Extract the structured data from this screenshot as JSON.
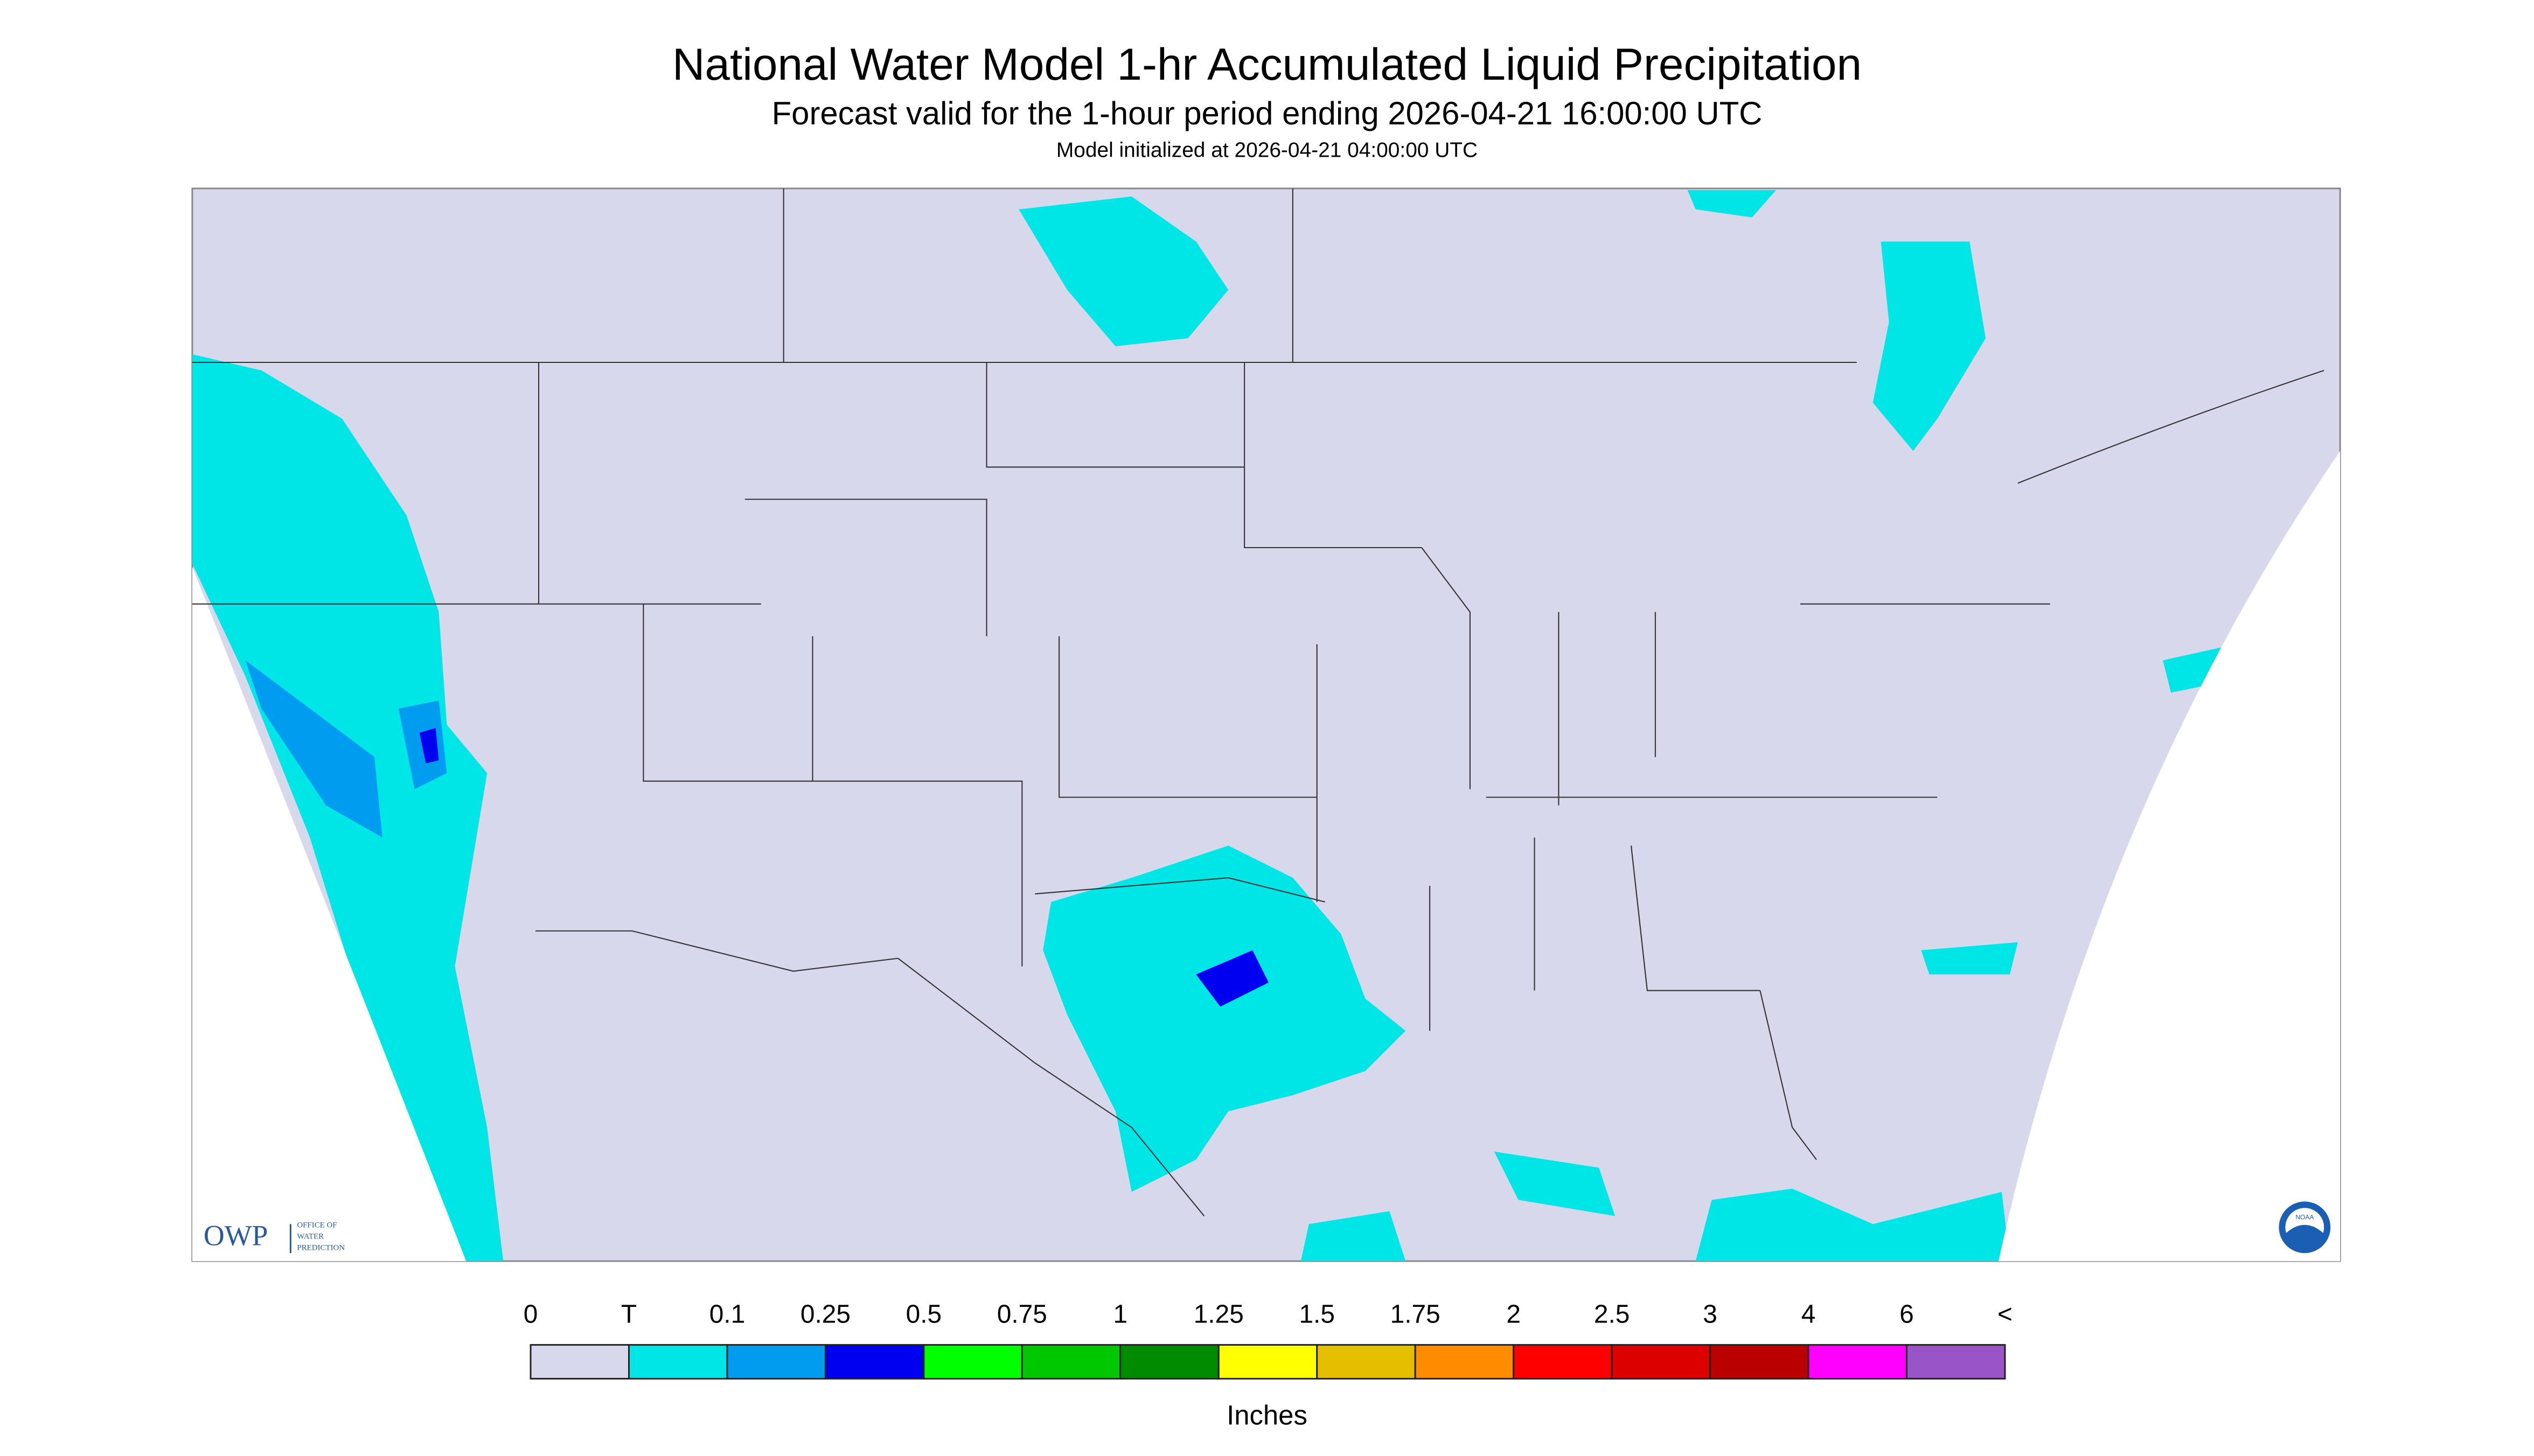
{
  "header": {
    "title": "National Water Model 1-hr Accumulated Liquid Precipitation",
    "subtitle": "Forecast valid for the 1-hour period ending 2026-04-21 16:00:00 UTC",
    "init": "Model initialized at 2026-04-21 04:00:00 UTC"
  },
  "logo": {
    "owp": "OWP",
    "owp_name": [
      "OFFICE OF",
      "WATER",
      "PREDICTION"
    ],
    "noaa": "NOAA"
  },
  "legend": {
    "labels": [
      "0",
      "T",
      "0.1",
      "0.25",
      "0.5",
      "0.75",
      "1",
      "1.25",
      "1.5",
      "1.75",
      "2",
      "2.5",
      "3",
      "4",
      "6",
      "<"
    ],
    "colors": [
      "#d8d8ec",
      "#00e5e5",
      "#009cf0",
      "#0000f0",
      "#00ff00",
      "#00c800",
      "#008c00",
      "#ffff00",
      "#e6be00",
      "#ff8c00",
      "#ff0000",
      "#dc0000",
      "#bb0000",
      "#ff00ff",
      "#9955c8"
    ],
    "units": "Inches"
  }
}
